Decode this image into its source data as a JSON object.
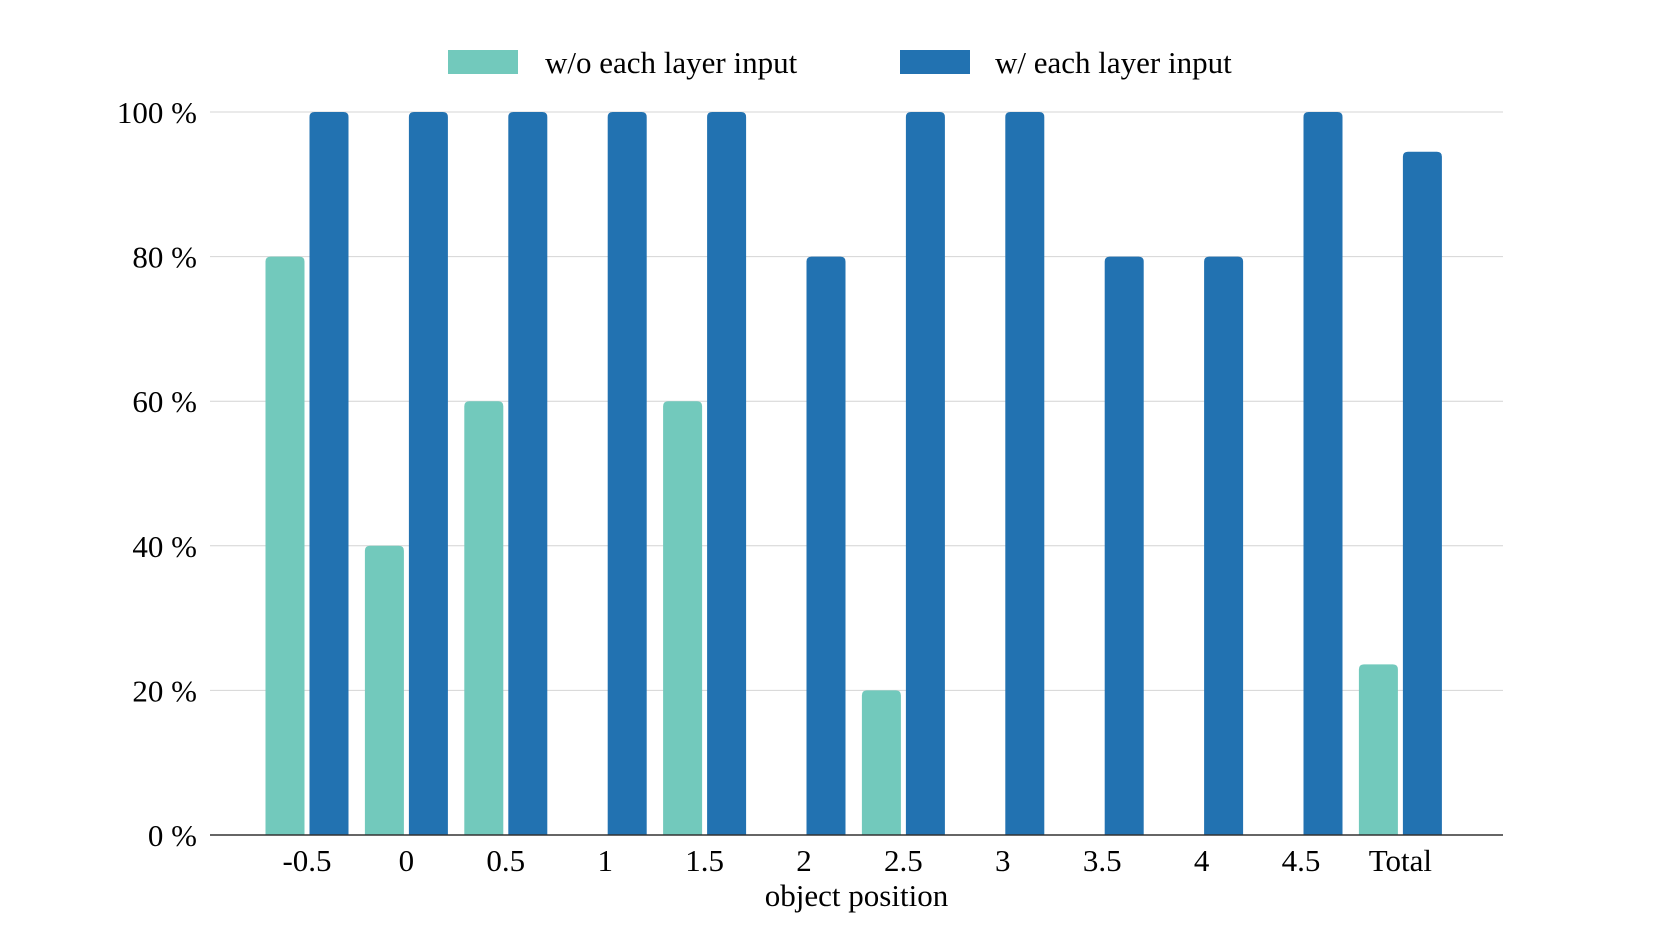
{
  "chart_data": {
    "type": "bar",
    "title": "",
    "xlabel": "object position",
    "ylabel": "",
    "categories": [
      "-0.5",
      "0",
      "0.5",
      "1",
      "1.5",
      "2",
      "2.5",
      "3",
      "3.5",
      "4",
      "4.5",
      "Total"
    ],
    "series": [
      {
        "name": "w/o each layer input",
        "color": "#72c9bc",
        "values": [
          80,
          40,
          60,
          0,
          60,
          0,
          20,
          0,
          0,
          0,
          0,
          23.6
        ]
      },
      {
        "name": "w/ each layer input",
        "color": "#2272b1",
        "values": [
          100,
          100,
          100,
          100,
          100,
          80,
          100,
          100,
          80,
          80,
          100,
          94.5
        ]
      }
    ],
    "ylim": [
      0,
      100
    ],
    "yticks": [
      0,
      20,
      40,
      60,
      80,
      100
    ],
    "ytick_labels": [
      "0 %",
      "20 %",
      "40 %",
      "60 %",
      "80 %",
      "100 %"
    ],
    "grid": true,
    "legend_position": "top-center"
  }
}
